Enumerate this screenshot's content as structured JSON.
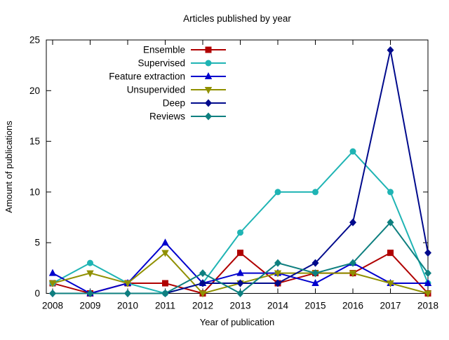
{
  "title": "Articles published by year",
  "xlabel": "Year of publication",
  "ylabel": "Amount of publications",
  "chart_data": {
    "type": "line",
    "x": [
      2008,
      2009,
      2010,
      2011,
      2012,
      2013,
      2014,
      2015,
      2016,
      2017,
      2018
    ],
    "xlim": [
      2008,
      2018
    ],
    "ylim": [
      0,
      25
    ],
    "yticks": [
      0,
      5,
      10,
      15,
      20,
      25
    ],
    "grid": false,
    "legend_position": "top-left-inside",
    "series": [
      {
        "name": "Ensemble",
        "color": "#b00000",
        "marker": "square",
        "values": [
          1,
          0,
          1,
          1,
          0,
          4,
          1,
          2,
          2,
          4,
          0
        ]
      },
      {
        "name": "Supervised",
        "color": "#1fb4b4",
        "marker": "circle",
        "values": [
          1,
          3,
          1,
          0,
          1,
          6,
          10,
          10,
          14,
          10,
          1
        ]
      },
      {
        "name": "Feature extraction",
        "color": "#0000cd",
        "marker": "triangle-up",
        "values": [
          2,
          0,
          1,
          5,
          1,
          2,
          2,
          1,
          3,
          1,
          1
        ]
      },
      {
        "name": "Unsupervided",
        "color": "#909000",
        "marker": "triangle-down",
        "values": [
          1,
          2,
          1,
          4,
          0,
          1,
          2,
          2,
          2,
          1,
          0
        ]
      },
      {
        "name": "Deep",
        "color": "#000a8c",
        "marker": "diamond",
        "values": [
          0,
          0,
          0,
          0,
          1,
          1,
          1,
          3,
          7,
          24,
          4
        ]
      },
      {
        "name": "Reviews",
        "color": "#0e7f7f",
        "marker": "diamond",
        "values": [
          0,
          0,
          0,
          0,
          2,
          0,
          3,
          2,
          3,
          7,
          2
        ]
      }
    ]
  }
}
